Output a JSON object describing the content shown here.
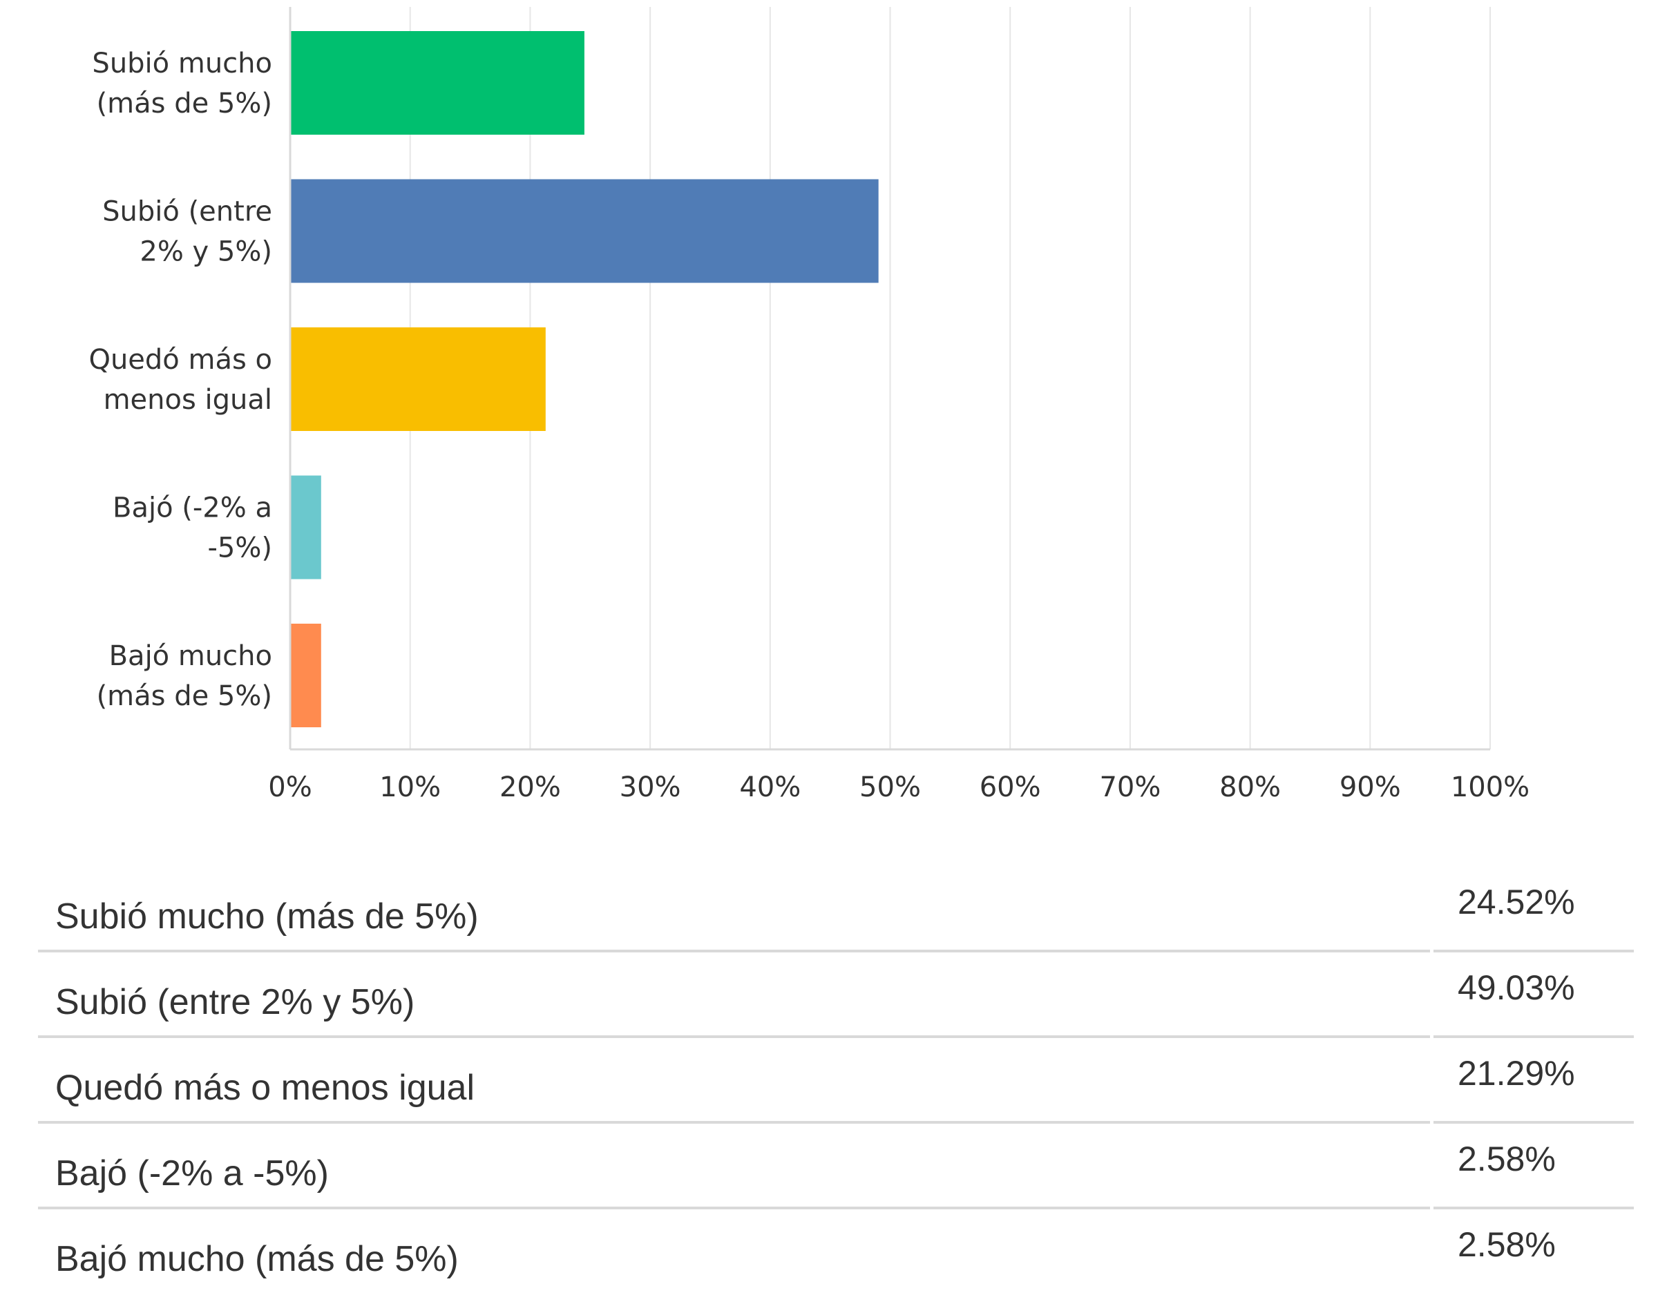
{
  "chart_data": {
    "type": "bar",
    "orientation": "horizontal",
    "categories": [
      [
        "Subió mucho",
        "(más de 5%)"
      ],
      [
        "Subió (entre",
        "2% y 5%)"
      ],
      [
        "Quedó más o",
        "menos igual"
      ],
      [
        "Bajó (-2% a",
        "-5%)"
      ],
      [
        "Bajó mucho",
        "(más de 5%)"
      ]
    ],
    "values": [
      24.52,
      49.03,
      21.29,
      2.58,
      2.58
    ],
    "colors": [
      "#00bf6f",
      "#507cb6",
      "#f9be00",
      "#6bc8cd",
      "#ff8b4f"
    ],
    "xlim": [
      0,
      100
    ],
    "xticks": [
      0,
      10,
      20,
      30,
      40,
      50,
      60,
      70,
      80,
      90,
      100
    ],
    "tick_labels": [
      "0%",
      "10%",
      "20%",
      "30%",
      "40%",
      "50%",
      "60%",
      "70%",
      "80%",
      "90%",
      "100%"
    ],
    "grid": true,
    "title": "",
    "xlabel": "",
    "ylabel": ""
  },
  "table": {
    "rows": [
      {
        "label": "Subió mucho (más de 5%)",
        "value": "24.52%"
      },
      {
        "label": "Subió (entre 2% y 5%)",
        "value": "49.03%"
      },
      {
        "label": "Quedó más o menos igual",
        "value": "21.29%"
      },
      {
        "label": "Bajó (-2% a -5%)",
        "value": "2.58%"
      },
      {
        "label": "Bajó mucho (más de 5%)",
        "value": "2.58%"
      }
    ]
  }
}
